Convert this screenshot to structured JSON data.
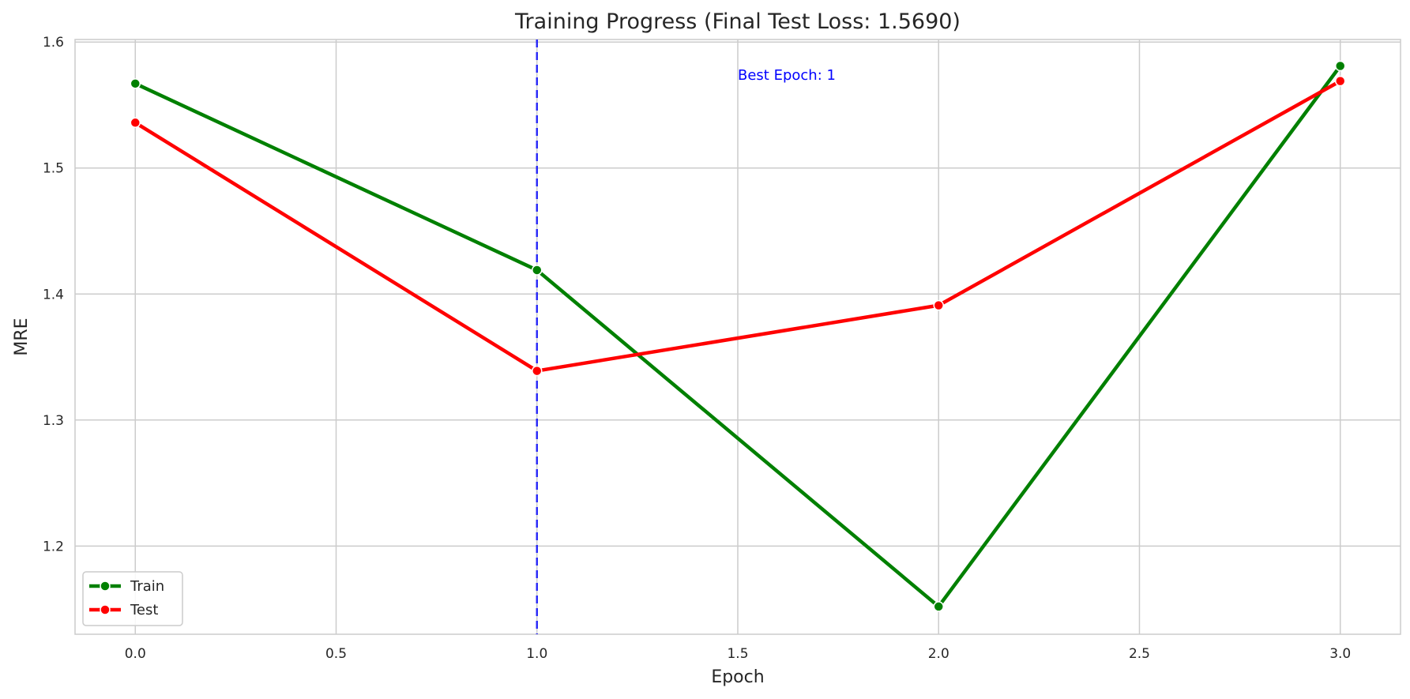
{
  "chart_data": {
    "type": "line",
    "title": "Training Progress (Final Test Loss: 1.5690)",
    "xlabel": "Epoch",
    "ylabel": "MRE",
    "x": [
      0,
      1,
      2,
      3
    ],
    "xlim": [
      -0.15,
      3.15
    ],
    "ylim": [
      1.13,
      1.602
    ],
    "xticks": [
      0.0,
      0.5,
      1.0,
      1.5,
      2.0,
      2.5,
      3.0
    ],
    "xtick_labels": [
      "0.0",
      "0.5",
      "1.0",
      "1.5",
      "2.0",
      "2.5",
      "3.0"
    ],
    "yticks": [
      1.2,
      1.3,
      1.4,
      1.5,
      1.6
    ],
    "ytick_labels": [
      "1.2",
      "1.3",
      "1.4",
      "1.5",
      "1.6"
    ],
    "grid": true,
    "legend_position": "lower-left",
    "series": [
      {
        "name": "Train",
        "values": [
          1.567,
          1.419,
          1.152,
          1.581
        ],
        "color": "#008000"
      },
      {
        "name": "Test",
        "values": [
          1.536,
          1.339,
          1.391,
          1.569
        ],
        "color": "#ff0000"
      }
    ],
    "annotations": [
      {
        "type": "vline",
        "x": 1,
        "color": "#0000ff",
        "style": "dashed"
      },
      {
        "type": "text",
        "text": "Best Epoch: 1",
        "x": 1.5,
        "y": 1.57,
        "color": "#0000ff"
      }
    ]
  }
}
